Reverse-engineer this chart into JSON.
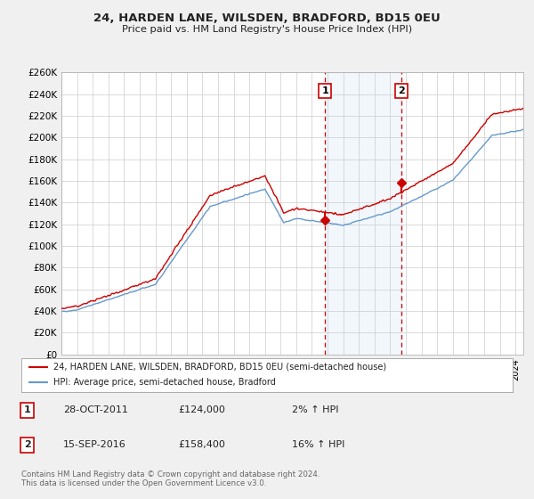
{
  "title": "24, HARDEN LANE, WILSDEN, BRADFORD, BD15 0EU",
  "subtitle": "Price paid vs. HM Land Registry's House Price Index (HPI)",
  "ylabel_ticks": [
    "£0",
    "£20K",
    "£40K",
    "£60K",
    "£80K",
    "£100K",
    "£120K",
    "£140K",
    "£160K",
    "£180K",
    "£200K",
    "£220K",
    "£240K",
    "£260K"
  ],
  "ylim": [
    0,
    260000
  ],
  "yticks": [
    0,
    20000,
    40000,
    60000,
    80000,
    100000,
    120000,
    140000,
    160000,
    180000,
    200000,
    220000,
    240000,
    260000
  ],
  "xlim_start": 1995.0,
  "xlim_end": 2024.5,
  "sale1_x": 2011.83,
  "sale1_y": 124000,
  "sale2_x": 2016.71,
  "sale2_y": 158400,
  "legend_line1": "24, HARDEN LANE, WILSDEN, BRADFORD, BD15 0EU (semi-detached house)",
  "legend_line2": "HPI: Average price, semi-detached house, Bradford",
  "sale1_date": "28-OCT-2011",
  "sale1_price": "£124,000",
  "sale1_hpi": "2% ↑ HPI",
  "sale2_date": "15-SEP-2016",
  "sale2_price": "£158,400",
  "sale2_hpi": "16% ↑ HPI",
  "footer": "Contains HM Land Registry data © Crown copyright and database right 2024.\nThis data is licensed under the Open Government Licence v3.0.",
  "red_color": "#cc0000",
  "blue_color": "#6699cc",
  "shade_color": "#ddeeff",
  "fig_bg": "#f0f0f0",
  "plot_bg": "#ffffff",
  "legend_bg": "#ffffff"
}
